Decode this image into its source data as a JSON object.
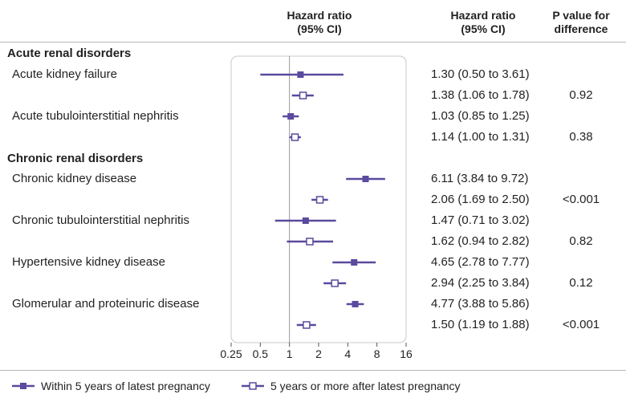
{
  "header": {
    "hr_plot_line1": "Hazard ratio",
    "hr_plot_line2": "(95% CI)",
    "hr_text_line1": "Hazard ratio",
    "hr_text_line2": "(95% CI)",
    "p_line1": "P value for",
    "p_line2": "difference"
  },
  "sections": {
    "acute": "Acute renal disorders",
    "chronic": "Chronic renal disorders"
  },
  "outcomes": [
    "Acute kidney failure",
    "Acute tubulointerstitial nephritis",
    "Chronic kidney disease",
    "Chronic tubulointerstitial nephritis",
    "Hypertensive kidney disease",
    "Glomerular and proteinuric disease"
  ],
  "ci_text": [
    "1.30 (0.50 to 3.61)",
    "1.38 (1.06 to 1.78)",
    "1.03 (0.85 to 1.25)",
    "1.14 (1.00 to 1.31)",
    "6.11 (3.84 to 9.72)",
    "2.06 (1.69 to 2.50)",
    "1.47 (0.71 to 3.02)",
    "1.62 (0.94 to 2.82)",
    "4.65 (2.78 to 7.77)",
    "2.94 (2.25 to 3.84)",
    "4.77 (3.88 to 5.86)",
    "1.50 (1.19 to 1.88)"
  ],
  "p_values": [
    "0.92",
    "0.38",
    "<0.001",
    "0.82",
    "0.12",
    "<0.001"
  ],
  "legend": {
    "within": "Within 5 years of latest pregnancy",
    "after": "5 years or more after latest pregnancy"
  },
  "colors": {
    "series": "#5b4a9e",
    "reference_line": "#9a9a9a",
    "frame": "#c8c8c8"
  },
  "chart_data": {
    "type": "forest",
    "xscale": "log2",
    "xlim": [
      0.25,
      16
    ],
    "x_ticks": [
      "0.25",
      "0.5",
      "1",
      "2",
      "4",
      "8",
      "16"
    ],
    "x_tick_values": [
      0.25,
      0.5,
      1,
      2,
      4,
      8,
      16
    ],
    "reference_value": 1,
    "series": [
      {
        "name": "Within 5 years of latest pregnancy",
        "marker": "filled-square"
      },
      {
        "name": "5 years or more after latest pregnancy",
        "marker": "open-square"
      }
    ],
    "rows": [
      {
        "outcome": "Acute kidney failure",
        "series": 0,
        "hr": 1.3,
        "lo": 0.5,
        "hi": 3.61
      },
      {
        "outcome": "Acute kidney failure",
        "series": 1,
        "hr": 1.38,
        "lo": 1.06,
        "hi": 1.78
      },
      {
        "outcome": "Acute tubulointerstitial nephritis",
        "series": 0,
        "hr": 1.03,
        "lo": 0.85,
        "hi": 1.25
      },
      {
        "outcome": "Acute tubulointerstitial nephritis",
        "series": 1,
        "hr": 1.14,
        "lo": 1.0,
        "hi": 1.31
      },
      {
        "outcome": "Chronic kidney disease",
        "series": 0,
        "hr": 6.11,
        "lo": 3.84,
        "hi": 9.72
      },
      {
        "outcome": "Chronic kidney disease",
        "series": 1,
        "hr": 2.06,
        "lo": 1.69,
        "hi": 2.5
      },
      {
        "outcome": "Chronic tubulointerstitial nephritis",
        "series": 0,
        "hr": 1.47,
        "lo": 0.71,
        "hi": 3.02
      },
      {
        "outcome": "Chronic tubulointerstitial nephritis",
        "series": 1,
        "hr": 1.62,
        "lo": 0.94,
        "hi": 2.82
      },
      {
        "outcome": "Hypertensive kidney disease",
        "series": 0,
        "hr": 4.65,
        "lo": 2.78,
        "hi": 7.77
      },
      {
        "outcome": "Hypertensive kidney disease",
        "series": 1,
        "hr": 2.94,
        "lo": 2.25,
        "hi": 3.84
      },
      {
        "outcome": "Glomerular and proteinuric disease",
        "series": 0,
        "hr": 4.77,
        "lo": 3.88,
        "hi": 5.86
      },
      {
        "outcome": "Glomerular and proteinuric disease",
        "series": 1,
        "hr": 1.5,
        "lo": 1.19,
        "hi": 1.88
      }
    ]
  }
}
